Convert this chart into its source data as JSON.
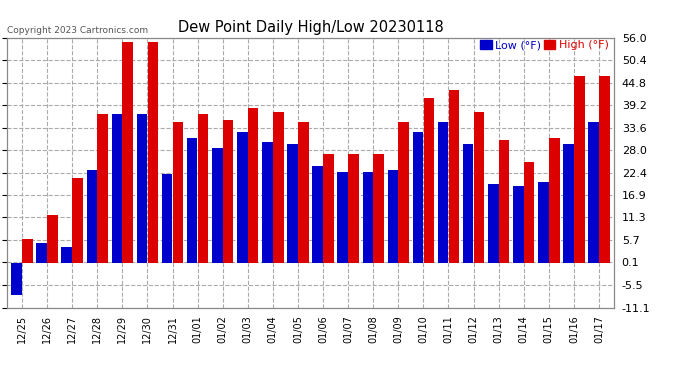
{
  "title": "Dew Point Daily High/Low 20230118",
  "copyright": "Copyright 2023 Cartronics.com",
  "legend_low": "Low (°F)",
  "legend_high": "High (°F)",
  "background_color": "#ffffff",
  "grid_color": "#aaaaaa",
  "bar_color_high": "#dd0000",
  "bar_color_low": "#0000cc",
  "ylim": [
    -11.1,
    56.0
  ],
  "yticks": [
    -11.1,
    -5.5,
    0.1,
    5.7,
    11.3,
    16.9,
    22.4,
    28.0,
    33.6,
    39.2,
    44.8,
    50.4,
    56.0
  ],
  "dates": [
    "12/25",
    "12/26",
    "12/27",
    "12/28",
    "12/29",
    "12/30",
    "12/31",
    "01/01",
    "01/02",
    "01/03",
    "01/04",
    "01/05",
    "01/06",
    "01/07",
    "01/08",
    "01/09",
    "01/10",
    "01/11",
    "01/12",
    "01/13",
    "01/14",
    "01/15",
    "01/16",
    "01/17"
  ],
  "high": [
    6.0,
    12.0,
    21.0,
    37.0,
    55.0,
    55.0,
    35.0,
    37.0,
    35.5,
    38.5,
    37.5,
    35.0,
    27.0,
    27.0,
    27.0,
    35.0,
    41.0,
    43.0,
    37.5,
    30.5,
    25.0,
    31.0,
    46.5,
    46.5
  ],
  "low": [
    -8.0,
    5.0,
    4.0,
    23.0,
    37.0,
    37.0,
    22.0,
    31.0,
    28.5,
    32.5,
    30.0,
    29.5,
    24.0,
    22.5,
    22.5,
    23.0,
    32.5,
    35.0,
    29.5,
    19.5,
    19.0,
    20.0,
    29.5,
    35.0
  ]
}
